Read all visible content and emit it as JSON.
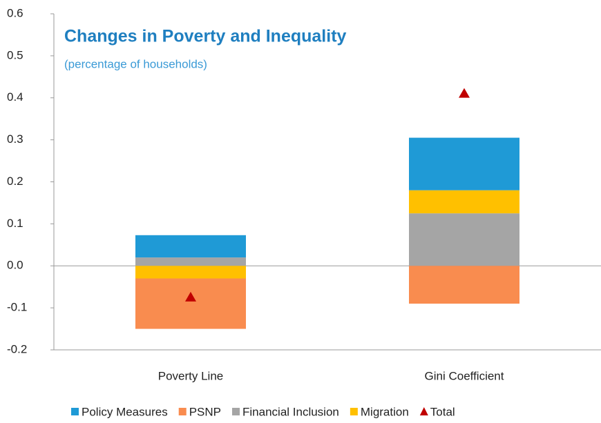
{
  "chart_data": {
    "type": "bar",
    "title": "Changes in Poverty and Inequality",
    "subtitle": "(percentage of households)",
    "categories": [
      "Poverty Line",
      "Gini Coefficient"
    ],
    "series": [
      {
        "name": "Policy Measures",
        "color": "#1f9ad6",
        "values": [
          0.053,
          0.125
        ]
      },
      {
        "name": "PSNP",
        "color": "#f98c4f",
        "values": [
          -0.12,
          -0.09
        ]
      },
      {
        "name": "Financial Inclusion",
        "color": "#a5a5a5",
        "values": [
          0.02,
          0.125
        ]
      },
      {
        "name": "Migration",
        "color": "#ffc000",
        "values": [
          -0.03,
          0.055
        ]
      },
      {
        "name": "Total",
        "color": "#c00000",
        "type": "marker",
        "values": [
          -0.075,
          0.41
        ]
      }
    ],
    "ylim": [
      -0.2,
      0.6
    ],
    "yticks": [
      -0.2,
      -0.1,
      {
        "value": 0,
        "label": "0.0"
      },
      0.1,
      0.2,
      0.3,
      0.4,
      0.5,
      0.6
    ],
    "legend": "bottom"
  }
}
